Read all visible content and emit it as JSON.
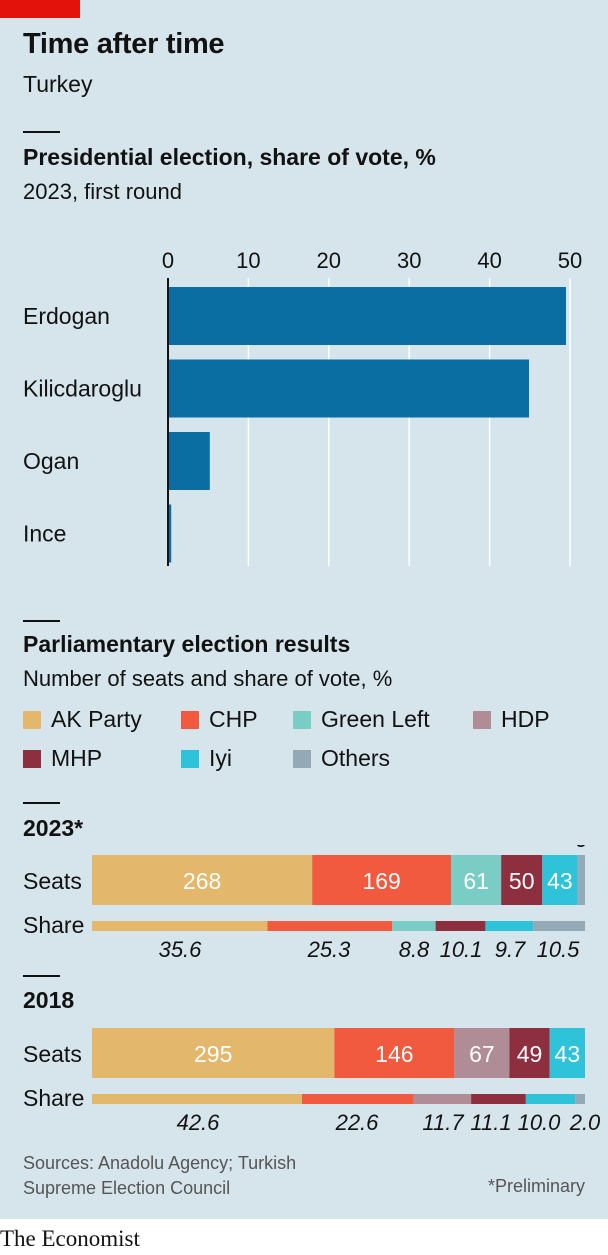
{
  "header": {
    "title": "Time after time",
    "subtitle": "Turkey"
  },
  "colors": {
    "background": "#d6e4ec",
    "presidential_bar": "#0a6ea3",
    "AK Party": "#e3b86d",
    "CHP": "#f15a3e",
    "Green Left": "#79cdc4",
    "HDP": "#b08c96",
    "MHP": "#8e2f40",
    "Iyi": "#2ec3d8",
    "Others": "#93a9b6"
  },
  "legend": {
    "items": [
      "AK Party",
      "CHP",
      "Green Left",
      "HDP",
      "MHP",
      "Iyi",
      "Others"
    ]
  },
  "sections": {
    "presidential_title": "Presidential election, share of vote, %",
    "presidential_sub": "2023, first round",
    "parliament_title": "Parliamentary election results",
    "parliament_sub": "Number of seats and share of vote, %"
  },
  "row_labels": {
    "seats": "Seats",
    "share": "Share"
  },
  "chart_data": [
    {
      "type": "bar",
      "orientation": "horizontal",
      "title": "Presidential election, share of vote, %",
      "subtitle": "2023, first round",
      "categories": [
        "Erdogan",
        "Kilicdaroglu",
        "Ogan",
        "Ince"
      ],
      "values": [
        49.5,
        44.9,
        5.2,
        0.4
      ],
      "xlim": [
        0,
        50
      ],
      "ticks": [
        0,
        10,
        20,
        30,
        40,
        50
      ],
      "tick_position": "top"
    },
    {
      "type": "bar",
      "stacked": true,
      "title": "Parliamentary election results",
      "subtitle": "Number of seats and share of vote, %",
      "years": [
        {
          "label": "2023*",
          "seats": [
            {
              "party": "AK Party",
              "value": 268
            },
            {
              "party": "CHP",
              "value": 169
            },
            {
              "party": "Green Left",
              "value": 61
            },
            {
              "party": "MHP",
              "value": 50
            },
            {
              "party": "Iyi",
              "value": 43
            },
            {
              "party": "Others",
              "value": 9
            }
          ],
          "share": [
            {
              "party": "AK Party",
              "value": 35.6
            },
            {
              "party": "CHP",
              "value": 25.3
            },
            {
              "party": "Green Left",
              "value": 8.8
            },
            {
              "party": "MHP",
              "value": 10.1
            },
            {
              "party": "Iyi",
              "value": 9.7
            },
            {
              "party": "Others",
              "value": 10.5
            }
          ]
        },
        {
          "label": "2018",
          "seats": [
            {
              "party": "AK Party",
              "value": 295
            },
            {
              "party": "CHP",
              "value": 146
            },
            {
              "party": "HDP",
              "value": 67
            },
            {
              "party": "MHP",
              "value": 49
            },
            {
              "party": "Iyi",
              "value": 43
            }
          ],
          "share": [
            {
              "party": "AK Party",
              "value": 42.6
            },
            {
              "party": "CHP",
              "value": 22.6
            },
            {
              "party": "HDP",
              "value": 11.7
            },
            {
              "party": "MHP",
              "value": 11.1
            },
            {
              "party": "Iyi",
              "value": 10.0
            },
            {
              "party": "Others",
              "value": 2.0
            }
          ]
        }
      ]
    }
  ],
  "footer": {
    "sources": "Sources: Anadolu Agency; Turkish Supreme Election Council",
    "note": "*Preliminary",
    "brand": "The Economist"
  }
}
